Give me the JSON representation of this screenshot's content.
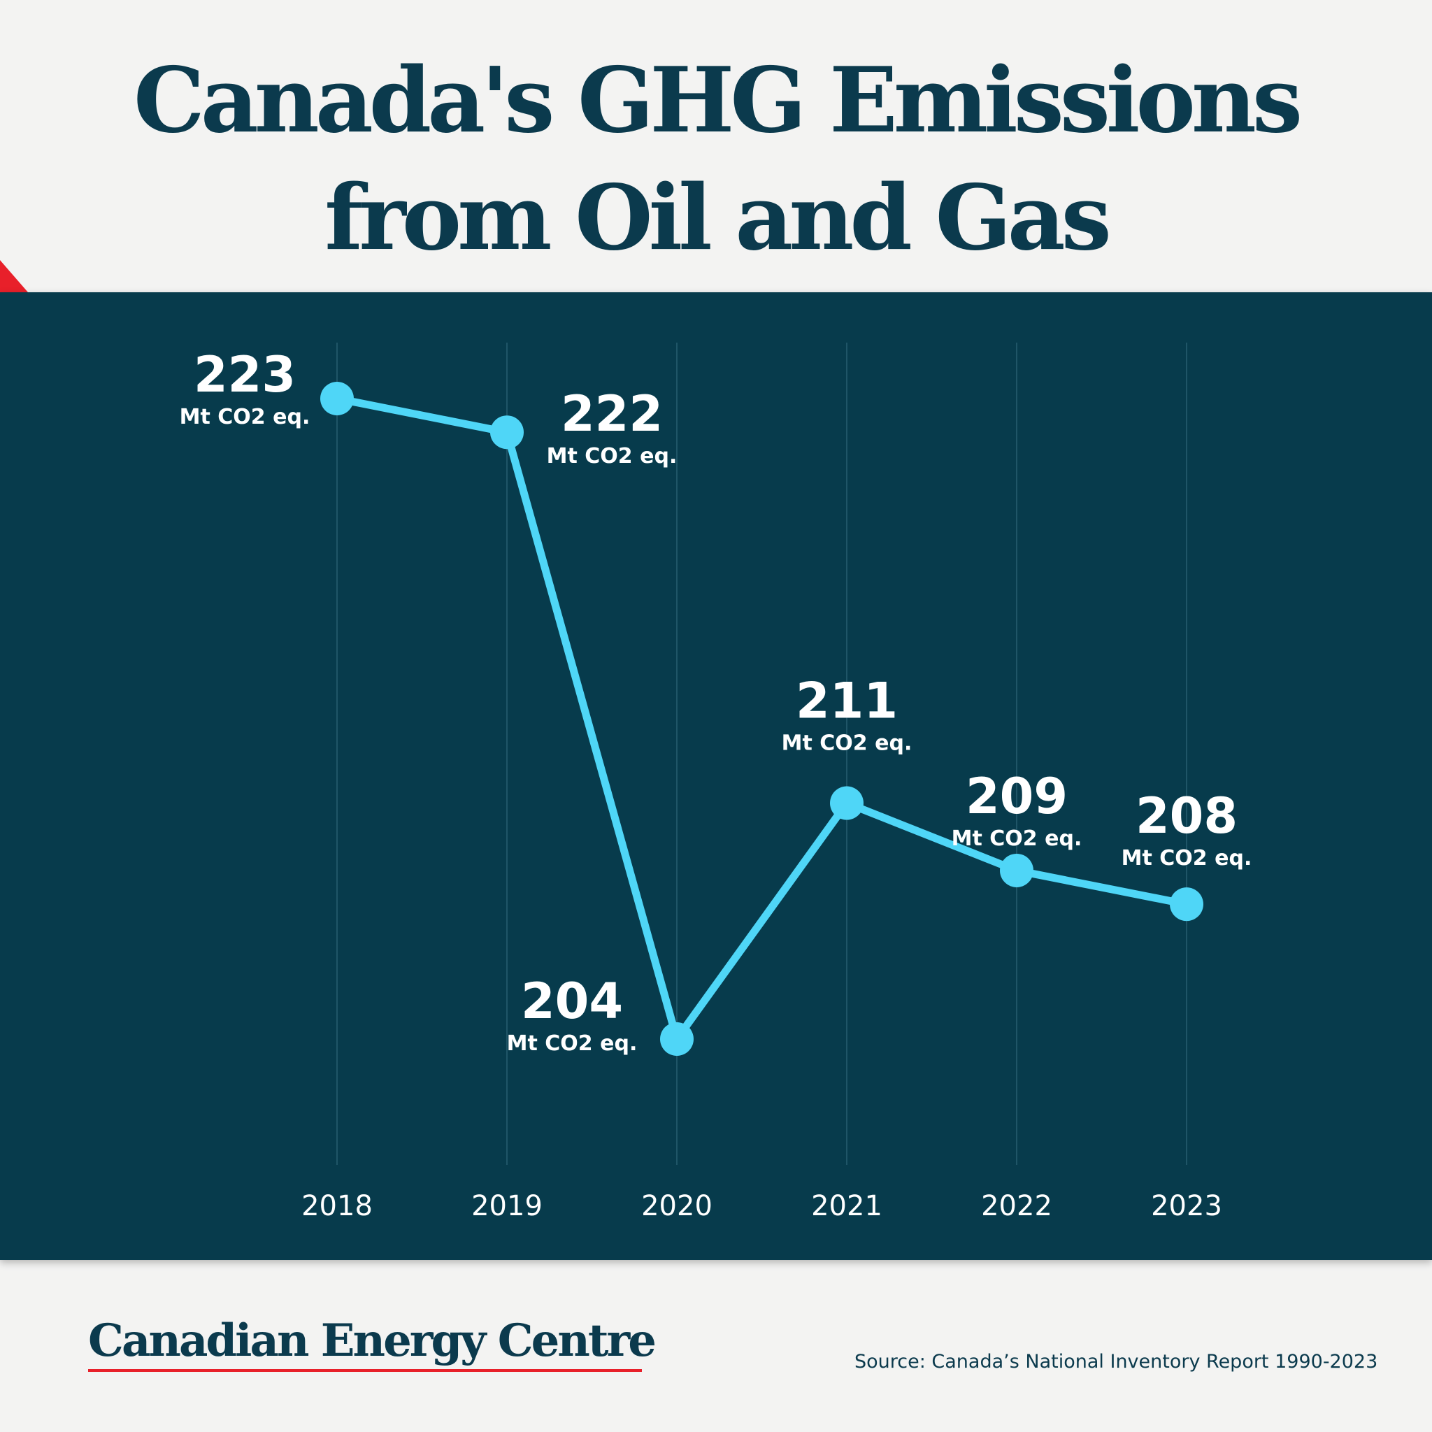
{
  "title": {
    "line1": "Canada's GHG Emissions",
    "line2": "from Oil and Gas"
  },
  "brand": "Canadian Energy Centre",
  "source": "Source: Canada’s National Inventory Report 1990-2023",
  "colors": {
    "background": "#f3f3f2",
    "panel": "#073b4c",
    "line": "#4fd6f7",
    "title": "#0b3a4d",
    "accent": "#e8202a"
  },
  "chart_data": {
    "type": "line",
    "title": "Canada's GHG Emissions from Oil and Gas",
    "xlabel": "",
    "ylabel": "",
    "x": [
      "2018",
      "2019",
      "2020",
      "2021",
      "2022",
      "2023"
    ],
    "series": [
      {
        "values": [
          223,
          222,
          204,
          211,
          209,
          208
        ],
        "value_labels": [
          "223",
          "222",
          "204",
          "211",
          "209",
          "208"
        ]
      }
    ],
    "unit_label": "Mt CO2 eq.",
    "ylim": [
      204,
      223
    ],
    "grid": "vertical",
    "legend": "none"
  }
}
